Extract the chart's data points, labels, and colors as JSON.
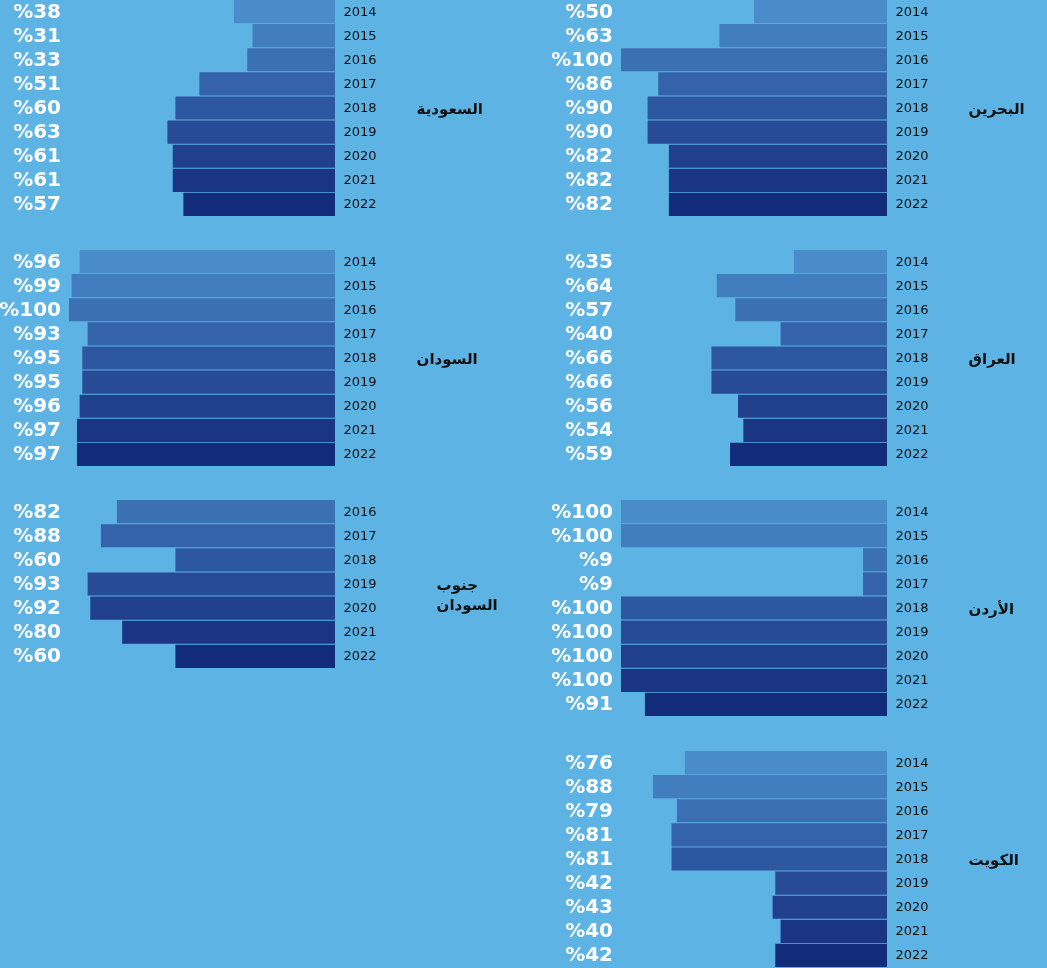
{
  "chart_data": [
    {
      "type": "bar",
      "orientation": "horizontal",
      "ylabel": "البحرين",
      "categories": [
        "2014",
        "2015",
        "2016",
        "2017",
        "2018",
        "2019",
        "2020",
        "2021",
        "2022"
      ],
      "values": [
        50,
        63,
        100,
        86,
        90,
        90,
        82,
        82,
        82
      ],
      "value_labels": [
        "%50",
        "%63",
        "%100",
        "%86",
        "%90",
        "%90",
        "%82",
        "%82",
        "%82"
      ],
      "colors": [
        "#4a8cc9",
        "#427ebf",
        "#3b70b5",
        "#3463ab",
        "#2d57a1",
        "#274b97",
        "#203f8d",
        "#1a3584",
        "#122b7b"
      ],
      "tick_labels": "y"
    },
    {
      "type": "bar",
      "orientation": "horizontal",
      "ylabel": "السعودية",
      "categories": [
        "2014",
        "2015",
        "2016",
        "2017",
        "2018",
        "2019",
        "2020",
        "2021",
        "2022"
      ],
      "values": [
        38,
        31,
        33,
        51,
        60,
        63,
        61,
        61,
        57
      ],
      "value_labels": [
        "%38",
        "%31",
        "%33",
        "%51",
        "%60",
        "%63",
        "%61",
        "%61",
        "%57"
      ],
      "colors": [
        "#4a8cc9",
        "#427ebf",
        "#3b70b5",
        "#3463ab",
        "#2d57a1",
        "#274b97",
        "#203f8d",
        "#1a3584",
        "#122b7b"
      ],
      "tick_labels": "y"
    },
    {
      "type": "bar",
      "orientation": "horizontal",
      "ylabel": "العراق",
      "categories": [
        "2014",
        "2015",
        "2016",
        "2017",
        "2018",
        "2019",
        "2020",
        "2021",
        "2022"
      ],
      "values": [
        35,
        64,
        57,
        40,
        66,
        66,
        56,
        54,
        59
      ],
      "value_labels": [
        "%35",
        "%64",
        "%57",
        "%40",
        "%66",
        "%66",
        "%56",
        "%54",
        "%59"
      ],
      "colors": [
        "#4a8cc9",
        "#427ebf",
        "#3b70b5",
        "#3463ab",
        "#2d57a1",
        "#274b97",
        "#203f8d",
        "#1a3584",
        "#122b7b"
      ],
      "tick_labels": "y"
    },
    {
      "type": "bar",
      "orientation": "horizontal",
      "ylabel": "السودان",
      "categories": [
        "2014",
        "2015",
        "2016",
        "2017",
        "2018",
        "2019",
        "2020",
        "2021",
        "2022"
      ],
      "values": [
        96,
        99,
        100,
        93,
        95,
        95,
        96,
        97,
        97
      ],
      "value_labels": [
        "%96",
        "%99",
        "%100",
        "%93",
        "%95",
        "%95",
        "%96",
        "%97",
        "%97"
      ],
      "colors": [
        "#4a8cc9",
        "#427ebf",
        "#3b70b5",
        "#3463ab",
        "#2d57a1",
        "#274b97",
        "#203f8d",
        "#1a3584",
        "#122b7b"
      ],
      "tick_labels": "y"
    },
    {
      "type": "bar",
      "orientation": "horizontal",
      "ylabel": "الأردن",
      "categories": [
        "2014",
        "2015",
        "2016",
        "2017",
        "2018",
        "2019",
        "2020",
        "2021",
        "2022"
      ],
      "values": [
        100,
        100,
        9,
        9,
        100,
        100,
        100,
        100,
        91
      ],
      "value_labels": [
        "%100",
        "%100",
        "%9",
        "%9",
        "%100",
        "%100",
        "%100",
        "%100",
        "%91"
      ],
      "colors": [
        "#4a8cc9",
        "#427ebf",
        "#3b70b5",
        "#3463ab",
        "#2d57a1",
        "#274b97",
        "#203f8d",
        "#1a3584",
        "#122b7b"
      ],
      "tick_labels": "y"
    },
    {
      "type": "bar",
      "orientation": "horizontal",
      "ylabel": "جنوب السودان",
      "categories": [
        "2016",
        "2017",
        "2018",
        "2019",
        "2020",
        "2021",
        "2022"
      ],
      "values": [
        82,
        88,
        60,
        93,
        92,
        80,
        60
      ],
      "value_labels": [
        "%82",
        "%88",
        "%60",
        "%93",
        "%92",
        "%80",
        "%60"
      ],
      "colors": [
        "#3b70b5",
        "#3463ab",
        "#2d57a1",
        "#274b97",
        "#203f8d",
        "#1a3584",
        "#122b7b"
      ],
      "tick_labels": "y"
    },
    {
      "type": "bar",
      "orientation": "horizontal",
      "ylabel": "الكويت",
      "categories": [
        "2014",
        "2015",
        "2016",
        "2017",
        "2018",
        "2019",
        "2020",
        "2021",
        "2022"
      ],
      "values": [
        76,
        88,
        79,
        81,
        81,
        42,
        43,
        40,
        42
      ],
      "value_labels": [
        "%76",
        "%88",
        "%79",
        "%81",
        "%81",
        "%42",
        "%43",
        "%40",
        "%42"
      ],
      "colors": [
        "#4a8cc9",
        "#427ebf",
        "#3b70b5",
        "#3463ab",
        "#2d57a1",
        "#274b97",
        "#203f8d",
        "#1a3584",
        "#122b7b"
      ],
      "tick_labels": "y"
    }
  ]
}
